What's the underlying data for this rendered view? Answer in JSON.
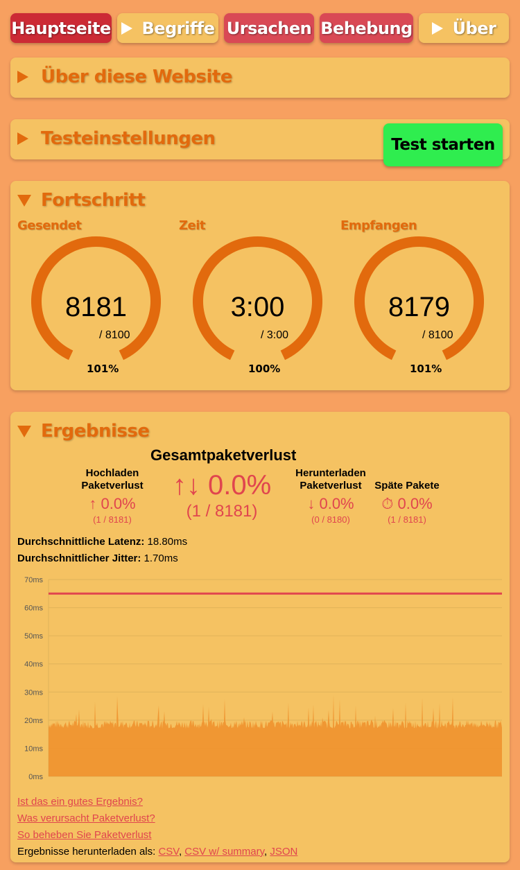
{
  "nav": {
    "home": "Hauptseite",
    "terms": "Begriffe",
    "causes": "Ursachen",
    "fix": "Behebung",
    "about": "Über"
  },
  "about_panel": {
    "title": "Über diese Website"
  },
  "settings_panel": {
    "title": "Testeinstellungen",
    "start_button": "Test starten"
  },
  "progress_panel": {
    "title": "Fortschritt",
    "gauges": [
      {
        "label": "Gesendet",
        "value": "8181",
        "total": "/ 8100",
        "percent": "101%",
        "fraction": 1.0
      },
      {
        "label": "Zeit",
        "value": "3:00",
        "total": "/ 3:00",
        "percent": "100%",
        "fraction": 1.0
      },
      {
        "label": "Empfangen",
        "value": "8179",
        "total": "/ 8100",
        "percent": "101%",
        "fraction": 1.0
      }
    ]
  },
  "results_panel": {
    "title": "Ergebnisse",
    "total_title": "Gesamtpaketverlust",
    "total_value": "↑↓ 0.0%",
    "total_sub": "(1 / 8181)",
    "upload_label_1": "Hochladen",
    "upload_label_2": "Paketverlust",
    "upload_value": "↑ 0.0%",
    "upload_sub": "(1 / 8181)",
    "download_label_1": "Herunterladen",
    "download_label_2": "Paketverlust",
    "download_value": "↓ 0.0%",
    "download_sub": "(0 / 8180)",
    "late_label": "Späte Pakete",
    "late_value": "⏱ 0.0%",
    "late_sub": "(1 / 8181)",
    "latency_label": "Durchschnittliche Latenz:",
    "latency_value": "18.80ms",
    "jitter_label": "Durchschnittlicher Jitter:",
    "jitter_value": "1.70ms",
    "links": {
      "good_result": "Ist das ein gutes Ergebnis?",
      "cause": "Was verursacht Paketverlust?",
      "fix": "So beheben Sie Paketverlust",
      "download_prefix": "Ergebnisse herunterladen als:",
      "csv": "CSV",
      "csv_summary": "CSV w/ summary",
      "json": "JSON"
    }
  },
  "chart_data": {
    "type": "area",
    "y_ticks": [
      "70ms",
      "60ms",
      "50ms",
      "40ms",
      "30ms",
      "20ms",
      "10ms",
      "0ms"
    ],
    "ylim": [
      0,
      70
    ],
    "threshold_ms": 65,
    "latency_band_ms": [
      17,
      20
    ],
    "spike_max_ms": 31,
    "colors": {
      "area": "#ef9530",
      "threshold": "#e0454e",
      "grid": "#e0b35a"
    }
  }
}
